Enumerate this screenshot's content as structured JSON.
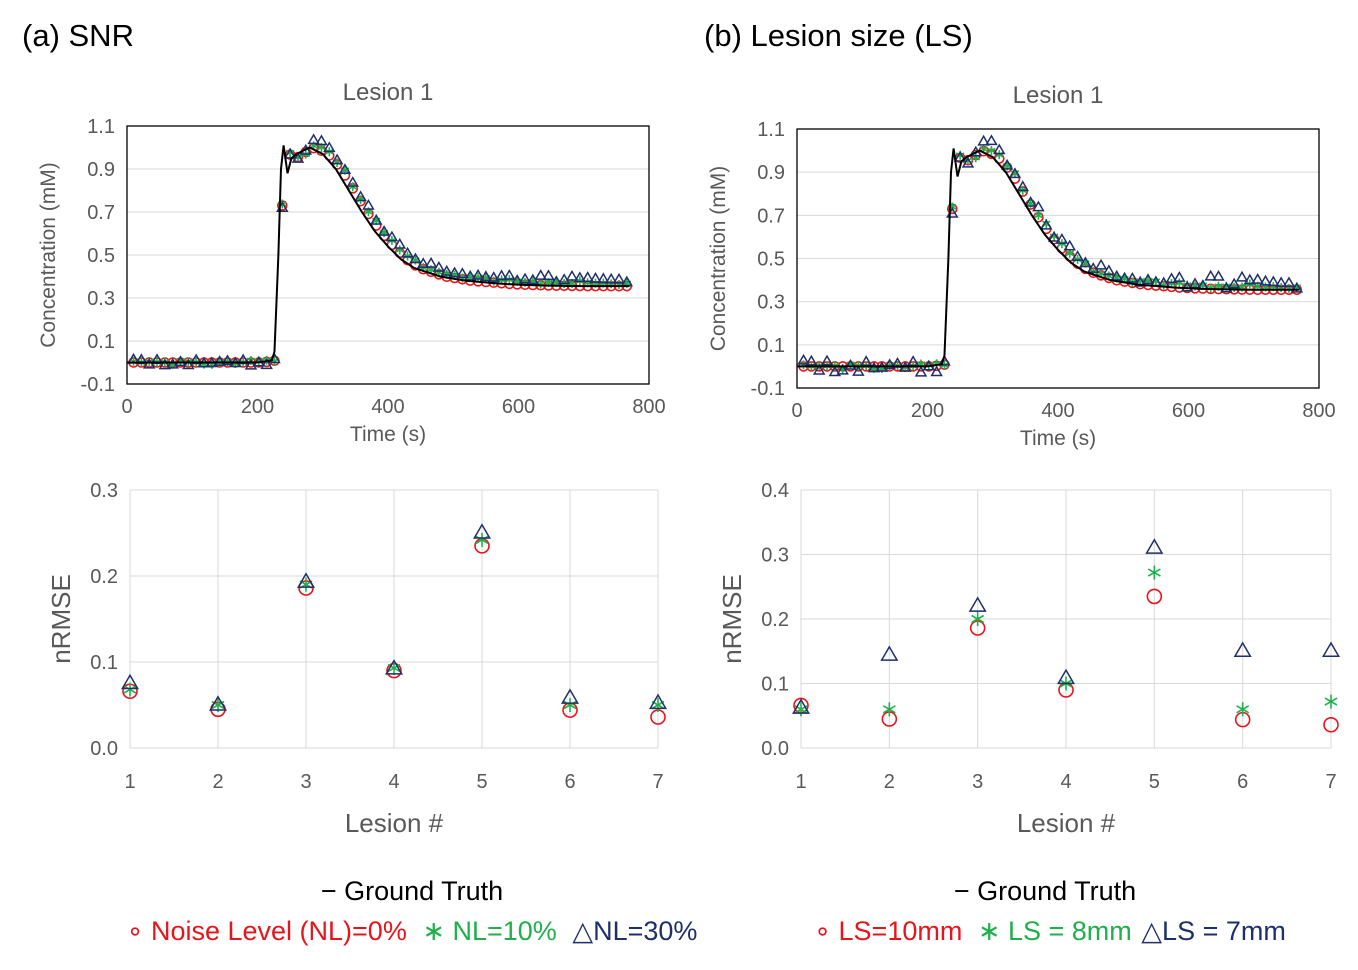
{
  "colors": {
    "ground_truth": "#000000",
    "red": "#e8141b",
    "green": "#1fb04b",
    "navy": "#1f2f6b",
    "axis_text": "#595959",
    "grid": "#d9d9d9"
  },
  "panels": {
    "a": {
      "label": "(a) SNR"
    },
    "b": {
      "label": "(b) Lesion size (LS)"
    }
  },
  "legends": {
    "a": {
      "ground_truth": "− Ground Truth",
      "s1": "∘ Noise Level (NL)=0%",
      "s2": "∗ NL=10%",
      "s3": "△NL=30%"
    },
    "b": {
      "ground_truth": "− Ground Truth",
      "s1": "∘ LS=10mm",
      "s2": "∗ LS = 8mm",
      "s3": "△LS = 7mm"
    }
  },
  "chart_data": [
    {
      "id": "a_top",
      "type": "line+scatter",
      "title": "Lesion 1",
      "xlabel": "Time (s)",
      "ylabel": "Concentration (mM)",
      "xlim": [
        0,
        800
      ],
      "ylim": [
        -0.1,
        1.1
      ],
      "xticks": [
        0,
        200,
        400,
        600,
        800
      ],
      "yticks": [
        -0.1,
        0.1,
        0.3,
        0.5,
        0.7,
        0.9,
        1.1
      ],
      "grid": "horizontal",
      "ground_truth": {
        "name": "Ground Truth",
        "x": [
          0,
          100,
          200,
          222,
          226,
          232,
          236,
          240,
          246,
          252,
          260,
          270,
          280,
          300,
          320,
          340,
          360,
          380,
          400,
          420,
          440,
          460,
          480,
          500,
          520,
          540,
          560,
          580,
          600,
          620,
          640,
          660,
          680,
          700,
          720,
          740,
          770
        ],
        "y": [
          0.0,
          0.0,
          0.0,
          0.01,
          0.05,
          0.5,
          0.9,
          1.01,
          0.88,
          0.95,
          0.97,
          0.985,
          1.0,
          0.97,
          0.9,
          0.8,
          0.7,
          0.61,
          0.54,
          0.48,
          0.44,
          0.42,
          0.4,
          0.39,
          0.38,
          0.375,
          0.37,
          0.365,
          0.362,
          0.36,
          0.358,
          0.357,
          0.356,
          0.355,
          0.355,
          0.355,
          0.355
        ]
      },
      "sampling": {
        "x_start": 10,
        "x_end": 766,
        "dx": 12
      },
      "series": [
        {
          "name": "Noise Level (NL)=0%",
          "marker": "circle",
          "color": "#e8141b",
          "profile": "base"
        },
        {
          "name": "NL=10%",
          "marker": "asterisk",
          "color": "#1fb04b",
          "profile": "base",
          "noise": 0.01
        },
        {
          "name": "NL=30%",
          "marker": "triangle",
          "color": "#1f2f6b",
          "profile": "base",
          "noise": 0.015
        }
      ]
    },
    {
      "id": "b_top",
      "type": "line+scatter",
      "title": "Lesion 1",
      "xlabel": "Time (s)",
      "ylabel": "Concentration (mM)",
      "xlim": [
        0,
        800
      ],
      "ylim": [
        -0.1,
        1.1
      ],
      "xticks": [
        0,
        200,
        400,
        600,
        800
      ],
      "yticks": [
        -0.1,
        0.1,
        0.3,
        0.5,
        0.7,
        0.9,
        1.1
      ],
      "grid": "horizontal",
      "ground_truth": {
        "name": "Ground Truth",
        "x": [
          0,
          100,
          200,
          222,
          226,
          232,
          236,
          240,
          246,
          252,
          260,
          270,
          280,
          300,
          320,
          340,
          360,
          380,
          400,
          420,
          440,
          460,
          480,
          500,
          520,
          540,
          560,
          580,
          600,
          620,
          640,
          660,
          680,
          700,
          720,
          740,
          770
        ],
        "y": [
          0.0,
          0.0,
          0.0,
          0.01,
          0.05,
          0.5,
          0.9,
          1.01,
          0.88,
          0.95,
          0.97,
          0.985,
          1.0,
          0.97,
          0.9,
          0.8,
          0.7,
          0.61,
          0.54,
          0.48,
          0.44,
          0.42,
          0.4,
          0.39,
          0.38,
          0.375,
          0.37,
          0.365,
          0.362,
          0.36,
          0.358,
          0.357,
          0.356,
          0.355,
          0.355,
          0.355,
          0.355
        ]
      },
      "sampling": {
        "x_start": 10,
        "x_end": 766,
        "dx": 12
      },
      "series": [
        {
          "name": "LS=10mm",
          "marker": "circle",
          "color": "#e8141b",
          "profile": "base"
        },
        {
          "name": "LS = 8mm",
          "marker": "asterisk",
          "color": "#1fb04b",
          "profile": "base",
          "noise": 0.012
        },
        {
          "name": "LS = 7mm",
          "marker": "triangle",
          "color": "#1f2f6b",
          "profile": "base",
          "noise": 0.03
        }
      ]
    },
    {
      "id": "a_bottom",
      "type": "scatter",
      "xlabel": "Lesion #",
      "ylabel": "nRMSE",
      "xlim": [
        1,
        7
      ],
      "ylim": [
        0.0,
        0.3
      ],
      "xticks": [
        1,
        2,
        3,
        4,
        5,
        6,
        7
      ],
      "yticks": [
        0.0,
        0.1,
        0.2,
        0.3
      ],
      "ytick_labels": [
        "0.0",
        "0.1",
        "0.2",
        "0.3"
      ],
      "grid": "both",
      "categories": [
        1,
        2,
        3,
        4,
        5,
        6,
        7
      ],
      "series": [
        {
          "name": "Noise Level (NL)=0%",
          "marker": "circle",
          "color": "#e8141b",
          "values": [
            0.066,
            0.045,
            0.186,
            0.09,
            0.235,
            0.044,
            0.036
          ]
        },
        {
          "name": "NL=10%",
          "marker": "asterisk",
          "color": "#1fb04b",
          "values": [
            0.068,
            0.05,
            0.19,
            0.093,
            0.242,
            0.05,
            0.05
          ]
        },
        {
          "name": "NL=30%",
          "marker": "triangle",
          "color": "#1f2f6b",
          "values": [
            0.075,
            0.05,
            0.193,
            0.092,
            0.25,
            0.058,
            0.052
          ]
        }
      ]
    },
    {
      "id": "b_bottom",
      "type": "scatter",
      "xlabel": "Lesion #",
      "ylabel": "nRMSE",
      "xlim": [
        1,
        7
      ],
      "ylim": [
        0.0,
        0.4
      ],
      "xticks": [
        1,
        2,
        3,
        4,
        5,
        6,
        7
      ],
      "yticks": [
        0.0,
        0.1,
        0.2,
        0.3,
        0.4
      ],
      "ytick_labels": [
        "0.0",
        "0.1",
        "0.2",
        "0.3",
        "0.4"
      ],
      "grid": "both",
      "categories": [
        1,
        2,
        3,
        4,
        5,
        6,
        7
      ],
      "series": [
        {
          "name": "LS=10mm",
          "marker": "circle",
          "color": "#e8141b",
          "values": [
            0.066,
            0.045,
            0.186,
            0.09,
            0.235,
            0.044,
            0.036
          ]
        },
        {
          "name": "LS = 8mm",
          "marker": "asterisk",
          "color": "#1fb04b",
          "values": [
            0.06,
            0.06,
            0.2,
            0.1,
            0.272,
            0.06,
            0.072
          ]
        },
        {
          "name": "LS = 7mm",
          "marker": "triangle",
          "color": "#1f2f6b",
          "values": [
            0.062,
            0.144,
            0.22,
            0.108,
            0.31,
            0.15,
            0.15
          ]
        }
      ]
    }
  ]
}
